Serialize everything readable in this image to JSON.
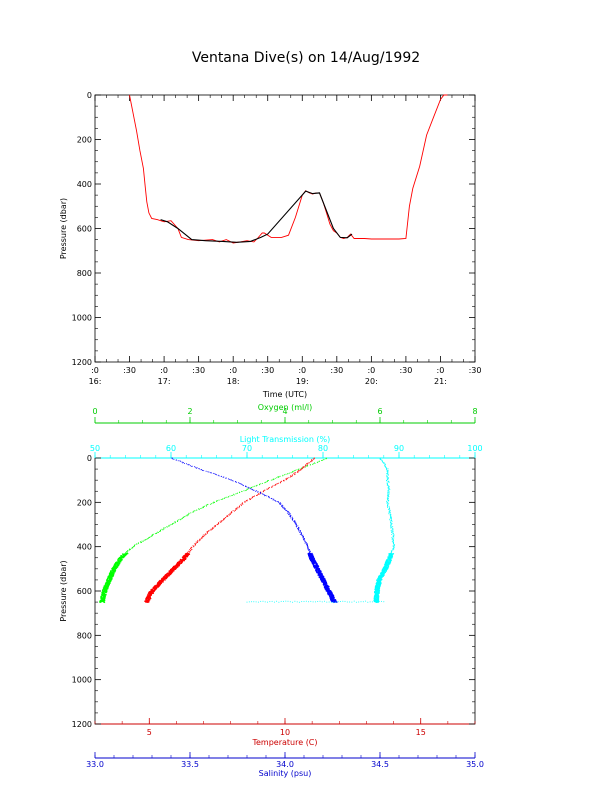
{
  "title": "Ventana Dive(s) on 14/Aug/1992",
  "chart_data": [
    {
      "type": "line",
      "xlabel": "Time (UTC)",
      "ylabel": "Pressure (dbar)",
      "x_ticks": [
        {
          "value": 16.0,
          "minute": ":0",
          "hour": "16:"
        },
        {
          "value": 16.5,
          "minute": ":30",
          "hour": ""
        },
        {
          "value": 17.0,
          "minute": ":0",
          "hour": "17:"
        },
        {
          "value": 17.5,
          "minute": ":30",
          "hour": ""
        },
        {
          "value": 18.0,
          "minute": ":0",
          "hour": "18:"
        },
        {
          "value": 18.5,
          "minute": ":30",
          "hour": ""
        },
        {
          "value": 19.0,
          "minute": ":0",
          "hour": "19:"
        },
        {
          "value": 19.5,
          "minute": ":30",
          "hour": ""
        },
        {
          "value": 20.0,
          "minute": ":0",
          "hour": "20:"
        },
        {
          "value": 20.5,
          "minute": ":30",
          "hour": ""
        },
        {
          "value": 21.0,
          "minute": ":0",
          "hour": "21:"
        },
        {
          "value": 21.5,
          "minute": ":30",
          "hour": ""
        }
      ],
      "y_ticks": [
        "0",
        "200",
        "400",
        "600",
        "800",
        "1000",
        "1200"
      ],
      "xlim": [
        16.0,
        21.5
      ],
      "ylim": [
        0,
        1200
      ],
      "y_reversed": true,
      "series": [
        {
          "color": "#ff0000",
          "x": [
            16.5,
            16.55,
            16.6,
            16.65,
            16.7,
            16.73,
            16.75,
            16.78,
            16.82,
            16.9,
            17.0,
            17.1,
            17.2,
            17.25,
            17.35,
            17.5,
            17.7,
            17.8,
            17.9,
            18.0,
            18.1,
            18.2,
            18.3,
            18.35,
            18.42,
            18.45,
            18.55,
            18.6,
            18.65,
            18.7,
            18.8,
            18.9,
            19.0,
            19.05,
            19.1,
            19.15,
            19.2,
            19.25,
            19.3,
            19.35,
            19.4,
            19.45,
            19.5,
            19.55,
            19.6,
            19.65,
            19.7,
            19.75,
            19.8,
            19.9,
            20.0,
            20.1,
            20.2,
            20.3,
            20.4,
            20.5,
            20.55,
            20.6,
            20.7,
            20.8,
            20.9,
            21.0,
            21.05,
            21.1
          ],
          "y": [
            0,
            80,
            160,
            250,
            330,
            420,
            480,
            530,
            555,
            560,
            570,
            565,
            600,
            640,
            650,
            655,
            650,
            660,
            650,
            665,
            660,
            655,
            660,
            645,
            620,
            620,
            640,
            640,
            640,
            640,
            630,
            550,
            450,
            430,
            440,
            445,
            440,
            440,
            480,
            530,
            580,
            610,
            620,
            640,
            645,
            640,
            625,
            645,
            645,
            645,
            647,
            647,
            647,
            647,
            647,
            645,
            500,
            420,
            320,
            180,
            100,
            20,
            0,
            0
          ]
        },
        {
          "color": "#000000",
          "x": [
            16.95,
            17.05,
            17.2,
            17.4,
            17.6,
            17.85,
            18.05,
            18.25,
            18.4,
            18.5,
            19.05,
            19.15,
            19.25,
            19.45,
            19.55,
            19.65,
            19.72
          ],
          "y": [
            560,
            570,
            600,
            650,
            655,
            658,
            662,
            658,
            640,
            625,
            432,
            443,
            440,
            600,
            640,
            642,
            625
          ]
        }
      ]
    },
    {
      "type": "scatter",
      "ylabel": "Pressure (dbar)",
      "y_ticks": [
        "0",
        "200",
        "400",
        "600",
        "800",
        "1000",
        "1200"
      ],
      "ylim": [
        0,
        1200
      ],
      "y_reversed": true,
      "axes": {
        "oxygen": {
          "label": "Oxygen (ml/l)",
          "color": "#00cc00",
          "range": [
            0,
            8
          ],
          "ticks": [
            "0",
            "2",
            "4",
            "6",
            "8"
          ],
          "position": "top"
        },
        "light": {
          "label": "Light Transmission (%)",
          "color": "#00ffff",
          "range": [
            50,
            100
          ],
          "ticks": [
            "50",
            "60",
            "70",
            "80",
            "90",
            "100"
          ],
          "position": "top"
        },
        "temperature": {
          "label": "Temperature (C)",
          "color": "#cc0000",
          "range": [
            3,
            17
          ],
          "ticks": [
            "5",
            "10",
            "15"
          ],
          "position": "bottom"
        },
        "salinity": {
          "label": "Salinity (psu)",
          "color": "#0000cc",
          "range": [
            33.0,
            35.0
          ],
          "ticks": [
            "33.0",
            "33.5",
            "34.0",
            "34.5",
            "35.0"
          ],
          "position": "bottom"
        }
      },
      "series": [
        {
          "name": "Oxygen (ml/l)",
          "axis": "oxygen",
          "color": "#00ff00",
          "x": [
            4.9,
            4.3,
            3.7,
            3.1,
            2.5,
            2.0,
            1.6,
            1.2,
            0.8,
            0.55,
            0.4,
            0.3,
            0.2,
            0.15
          ],
          "y": [
            0,
            50,
            100,
            150,
            200,
            250,
            300,
            350,
            400,
            450,
            500,
            550,
            600,
            650
          ]
        },
        {
          "name": "Temperature (C)",
          "axis": "temperature",
          "color": "#ff0000",
          "x": [
            11.1,
            10.6,
            10.0,
            9.2,
            8.5,
            8.0,
            7.5,
            7.0,
            6.6,
            6.3,
            5.9,
            5.5,
            5.1,
            4.9
          ],
          "y": [
            0,
            50,
            100,
            150,
            200,
            250,
            300,
            350,
            400,
            450,
            500,
            550,
            600,
            650
          ]
        },
        {
          "name": "Salinity (psu)",
          "axis": "salinity",
          "color": "#0000ff",
          "x": [
            33.4,
            33.55,
            33.72,
            33.85,
            33.97,
            34.02,
            34.06,
            34.09,
            34.12,
            34.14,
            34.17,
            34.2,
            34.23,
            34.26
          ],
          "y": [
            0,
            50,
            100,
            150,
            200,
            250,
            300,
            350,
            400,
            450,
            500,
            550,
            600,
            650
          ]
        },
        {
          "name": "Light Transmission (%)",
          "axis": "light",
          "color": "#00ffff",
          "x": [
            87.5,
            88.5,
            88.5,
            88.7,
            88.5,
            88.8,
            89.0,
            89.2,
            89.3,
            88.8,
            88.2,
            87.4,
            87.1,
            87.0
          ],
          "y": [
            0,
            50,
            100,
            150,
            200,
            250,
            300,
            350,
            400,
            450,
            500,
            550,
            600,
            650
          ]
        }
      ]
    }
  ]
}
